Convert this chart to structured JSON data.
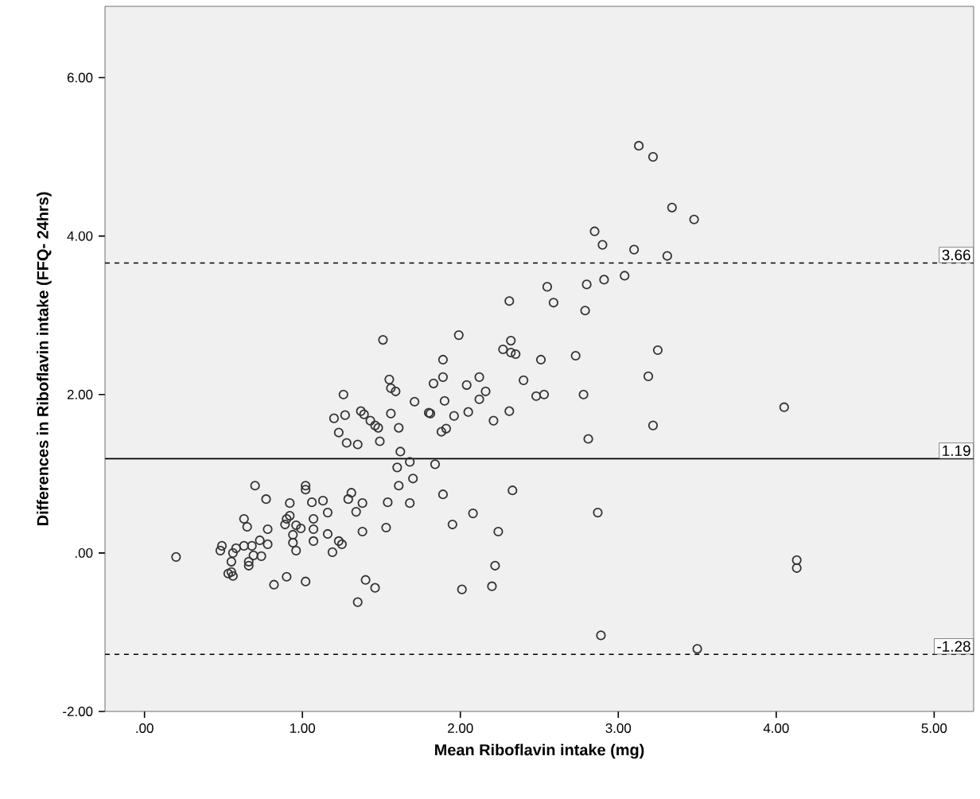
{
  "chart_data": {
    "type": "scatter",
    "xlabel": "Mean Riboflavin intake (mg)",
    "ylabel": "Differences in Riboflavin intake (FFQ- 24hrs)",
    "x": [
      0.2,
      0.7,
      0.77,
      1.02,
      1.02,
      1.31,
      1.29,
      1.38,
      1.34,
      1.38,
      0.63,
      0.65,
      0.78,
      0.92,
      1.06,
      1.13,
      1.16,
      0.9,
      0.92,
      0.89,
      0.96,
      0.94,
      0.99,
      1.07,
      1.07,
      1.07,
      1.16,
      1.23,
      1.25,
      1.19,
      0.96,
      0.94,
      0.73,
      0.78,
      0.68,
      0.63,
      0.58,
      0.49,
      0.48,
      0.56,
      0.55,
      0.66,
      0.74,
      0.69,
      0.66,
      0.53,
      0.56,
      0.55,
      0.82,
      0.9,
      1.02,
      1.4,
      1.46,
      1.35,
      1.51,
      1.26,
      1.2,
      1.27,
      1.23,
      1.28,
      1.35,
      1.37,
      1.39,
      1.43,
      1.46,
      1.48,
      1.49,
      1.55,
      1.56,
      1.59,
      1.56,
      1.61,
      1.71,
      1.8,
      1.81,
      1.83,
      1.89,
      1.89,
      1.9,
      1.88,
      1.91,
      1.96,
      1.99,
      2.04,
      2.12,
      2.16,
      2.12,
      2.05,
      2.21,
      2.31,
      2.27,
      2.32,
      2.32,
      2.35,
      2.31,
      2.51,
      2.4,
      2.48,
      2.53,
      2.59,
      2.55,
      2.79,
      2.73,
      2.78,
      2.81,
      1.62,
      1.68,
      1.6,
      1.84,
      1.61,
      1.7,
      1.54,
      1.68,
      1.89,
      1.53,
      2.08,
      1.95,
      2.33,
      2.24,
      2.22,
      2.2,
      2.01,
      2.87,
      2.89,
      3.13,
      3.22,
      3.34,
      3.48,
      2.85,
      2.9,
      3.1,
      3.31,
      2.8,
      2.91,
      3.04,
      3.25,
      3.19,
      3.22,
      4.05,
      4.13,
      4.13,
      3.5
    ],
    "values": [
      -0.05,
      0.85,
      0.68,
      0.85,
      0.8,
      0.76,
      0.68,
      0.63,
      0.52,
      0.27,
      0.43,
      0.33,
      0.3,
      0.63,
      0.64,
      0.66,
      0.51,
      0.43,
      0.47,
      0.36,
      0.35,
      0.23,
      0.31,
      0.43,
      0.3,
      0.15,
      0.24,
      0.15,
      0.11,
      0.01,
      0.03,
      0.13,
      0.16,
      0.11,
      0.09,
      0.09,
      0.06,
      0.09,
      0.03,
      0.0,
      -0.11,
      -0.11,
      -0.04,
      -0.03,
      -0.16,
      -0.26,
      -0.29,
      -0.24,
      -0.4,
      -0.3,
      -0.36,
      -0.34,
      -0.44,
      -0.62,
      2.69,
      2.0,
      1.7,
      1.74,
      1.52,
      1.39,
      1.37,
      1.79,
      1.75,
      1.67,
      1.61,
      1.58,
      1.41,
      2.19,
      2.08,
      2.04,
      1.76,
      1.58,
      1.91,
      1.77,
      1.76,
      2.14,
      2.44,
      2.22,
      1.92,
      1.53,
      1.57,
      1.73,
      2.75,
      2.12,
      2.22,
      2.04,
      1.94,
      1.78,
      1.67,
      1.79,
      2.57,
      2.68,
      2.53,
      2.51,
      3.18,
      2.44,
      2.18,
      1.98,
      2.0,
      3.16,
      3.36,
      3.06,
      2.49,
      2.0,
      1.44,
      1.28,
      1.15,
      1.08,
      1.12,
      0.85,
      0.94,
      0.64,
      0.63,
      0.74,
      0.32,
      0.5,
      0.36,
      0.79,
      0.27,
      -0.16,
      -0.42,
      -0.46,
      0.51,
      -1.04,
      5.14,
      5.0,
      4.36,
      4.21,
      4.06,
      3.89,
      3.83,
      3.75,
      3.39,
      3.45,
      3.5,
      2.56,
      2.23,
      1.61,
      1.84,
      -0.09,
      -0.19,
      -1.21
    ],
    "color": "#333333",
    "marker": "circle",
    "grid": false,
    "xlim": [
      -0.25,
      5.25
    ],
    "ylim": [
      -2,
      6.9
    ],
    "xticks": [
      {
        "value": 0,
        "label": ".00"
      },
      {
        "value": 1,
        "label": "1.00"
      },
      {
        "value": 2,
        "label": "2.00"
      },
      {
        "value": 3,
        "label": "3.00"
      },
      {
        "value": 4,
        "label": "4.00"
      },
      {
        "value": 5,
        "label": "5.00"
      }
    ],
    "yticks": [
      {
        "value": -2,
        "label": "-2.00"
      },
      {
        "value": 0,
        "label": ".00"
      },
      {
        "value": 2,
        "label": "2.00"
      },
      {
        "value": 4,
        "label": "4.00"
      },
      {
        "value": 6,
        "label": "6.00"
      }
    ],
    "ref_lines": [
      {
        "axis": "y",
        "value": 3.66,
        "label": "3.66",
        "line_style": "dashed"
      },
      {
        "axis": "y",
        "value": 1.19,
        "label": "1.19",
        "line_style": "solid"
      },
      {
        "axis": "y",
        "value": -1.28,
        "label": "-1.28",
        "line_style": "dashed"
      }
    ]
  }
}
